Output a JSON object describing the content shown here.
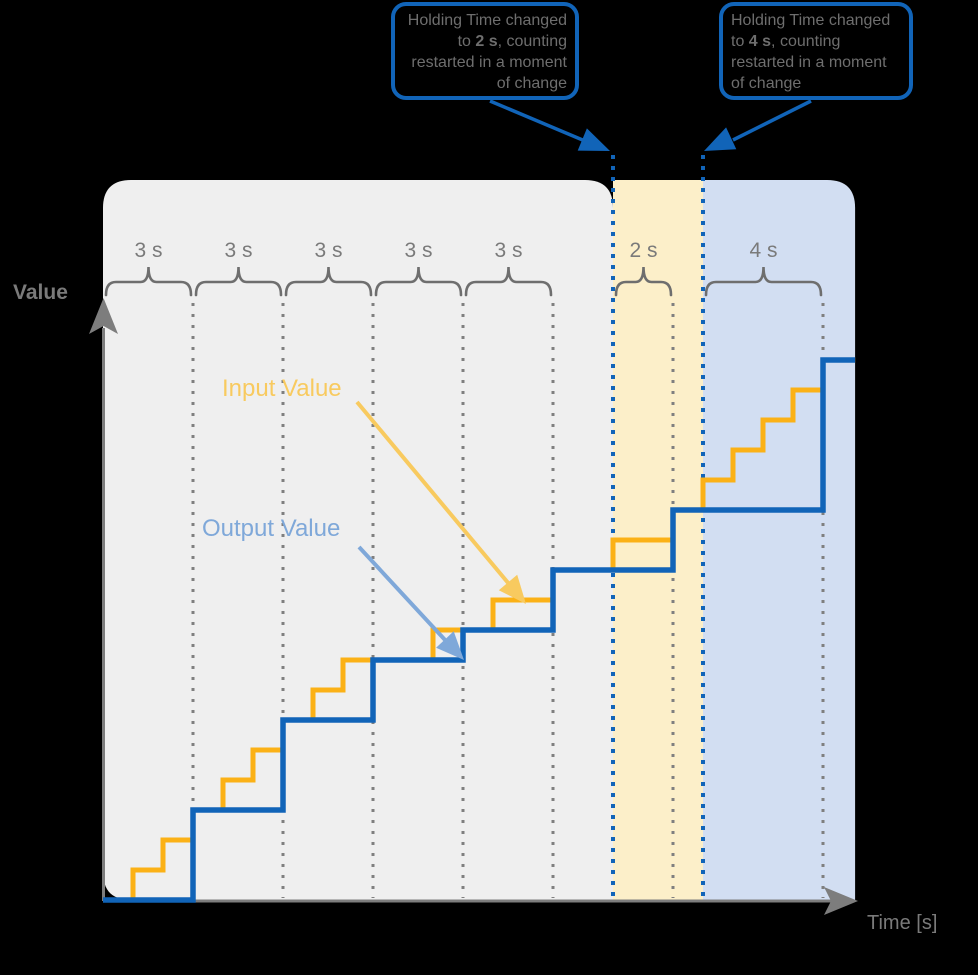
{
  "axes": {
    "y_label": "Value",
    "x_label": "Time [s]"
  },
  "series_labels": {
    "input": "Input Value",
    "output": "Output Value"
  },
  "callouts": [
    {
      "line1": "Holding Time changed",
      "line2_pre": "to ",
      "line2_value": "2 s",
      "line2_post": ", counting",
      "line3": "restarted in a moment",
      "line4": "of change"
    },
    {
      "line1": "Holding Time changed",
      "line2_pre": "to ",
      "line2_value": "4 s",
      "line2_post": ", counting",
      "line3": "restarted in a moment",
      "line4": "of change"
    }
  ],
  "colors": {
    "input_line": "#FBB116",
    "input_accent": "#F8CA5F",
    "output_line": "#1164B8",
    "output_accent": "#7FA8D9",
    "callout_border": "#1164B8",
    "callout_text": "#6E6E6E",
    "region_gray": "#EFEFEF",
    "region_yellow": "#FCEFC9",
    "region_blue": "#D2DEF2",
    "grid_gray": "#7F7F7F",
    "axis_gray": "#7D7D7D",
    "label_gray": "#7A7A7A",
    "brace_gray": "#6E6E6E"
  },
  "chart_data": {
    "type": "step-line",
    "x_unit": "seconds",
    "xlabel": "Time [s]",
    "ylabel": "Value",
    "end_time": 25.07,
    "series": [
      {
        "name": "Input Value",
        "steps": [
          [
            0,
            0
          ],
          [
            1,
            1
          ],
          [
            2,
            2
          ],
          [
            3,
            3
          ],
          [
            4,
            4
          ],
          [
            5,
            5
          ],
          [
            6,
            6
          ],
          [
            7,
            7
          ],
          [
            8,
            8
          ],
          [
            11,
            9
          ],
          [
            13,
            10
          ],
          [
            15,
            11
          ],
          [
            17,
            12
          ],
          [
            19,
            13
          ],
          [
            20,
            14
          ],
          [
            21,
            15
          ],
          [
            22,
            16
          ],
          [
            23,
            17
          ],
          [
            24,
            18
          ]
        ]
      },
      {
        "name": "Output Value",
        "steps": [
          [
            0,
            0
          ],
          [
            3,
            3
          ],
          [
            6,
            6
          ],
          [
            9,
            8
          ],
          [
            12,
            9
          ],
          [
            15,
            11
          ],
          [
            19,
            13
          ],
          [
            24,
            18
          ]
        ]
      }
    ],
    "hold_intervals": [
      {
        "label": "3 s",
        "from": 0,
        "to": 3
      },
      {
        "label": "3 s",
        "from": 3,
        "to": 6
      },
      {
        "label": "3 s",
        "from": 6,
        "to": 9
      },
      {
        "label": "3 s",
        "from": 9,
        "to": 12
      },
      {
        "label": "3 s",
        "from": 12,
        "to": 15
      },
      {
        "label": "2 s",
        "from": 17,
        "to": 19
      },
      {
        "label": "4 s",
        "from": 20,
        "to": 24
      }
    ],
    "regions": [
      {
        "name": "hold-3s-region",
        "from": 0,
        "to": 17,
        "color": "#EFEFEF",
        "shape": "gray"
      },
      {
        "name": "hold-2s-region",
        "from": 17,
        "to": 20,
        "color": "#FCEFC9",
        "shape": "rect"
      },
      {
        "name": "hold-4s-region",
        "from": 20,
        "to": 25.07,
        "color": "#D2DEF2",
        "shape": "blue"
      }
    ],
    "gridlines_gray": [
      3,
      6,
      9,
      12,
      15,
      19,
      24
    ],
    "gridlines_blue": [
      17,
      20
    ]
  }
}
